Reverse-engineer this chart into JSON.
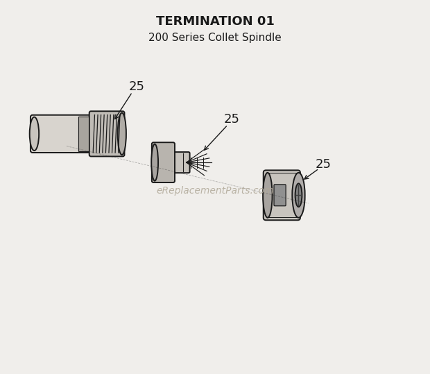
{
  "title_line1": "TERMINATION 01",
  "title_line2": "200 Series Collet Spindle",
  "title_fontsize": 13,
  "subtitle_fontsize": 11,
  "background_color": "#f0eeeb",
  "line_color": "#1a1a1a",
  "watermark_text": "eReplacementParts.com",
  "watermark_color": "#b0a898",
  "watermark_fontsize": 10,
  "label_fontsize": 13,
  "part_number": "25",
  "fig_width": 6.2,
  "fig_height": 5.39,
  "dpi": 100
}
